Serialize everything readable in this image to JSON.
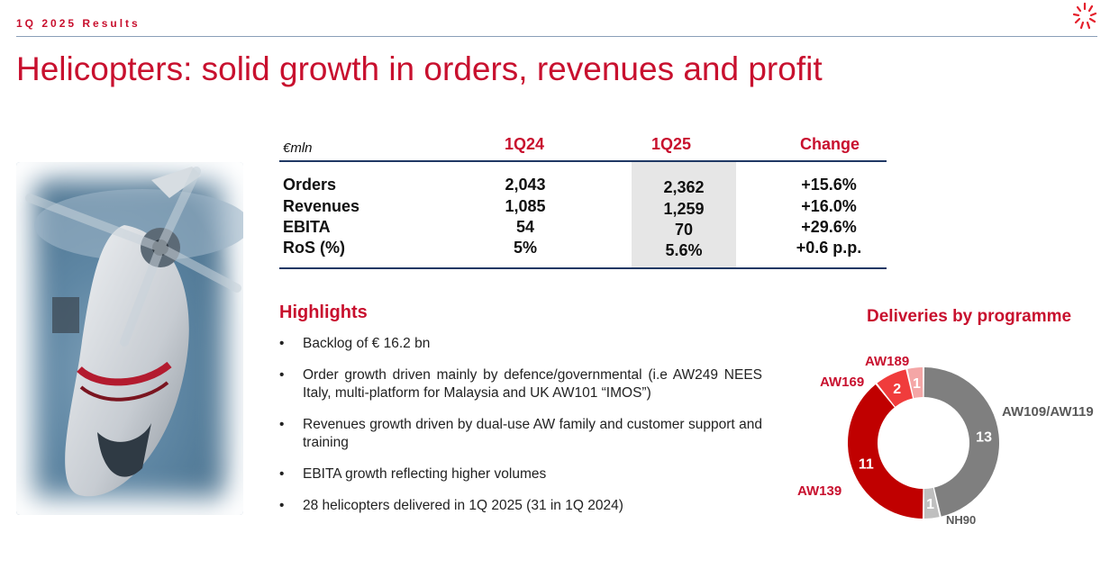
{
  "header": {
    "label": "1Q 2025 Results"
  },
  "title": "Helicopters: solid growth in orders, revenues and profit",
  "table": {
    "unit": "€mln",
    "columns": [
      "1Q24",
      "1Q25",
      "Change"
    ],
    "rows": [
      {
        "label": "Orders",
        "q24": "2,043",
        "q25": "2,362",
        "change": "+15.6%"
      },
      {
        "label": "Revenues",
        "q24": "1,085",
        "q25": "1,259",
        "change": "+16.0%"
      },
      {
        "label": "EBITA",
        "q24": "54",
        "q25": "70",
        "change": "+29.6%"
      },
      {
        "label": "RoS (%)",
        "q24": "5%",
        "q25": "5.6%",
        "change": "+0.6 p.p."
      }
    ]
  },
  "highlights": {
    "title": "Highlights",
    "items": [
      "Backlog of € 16.2 bn",
      "Order growth driven mainly by defence/governmental (i.e AW249 NEES Italy, multi-platform for Malaysia and UK AW101 “IMOS”)",
      "Revenues growth driven by dual-use AW family and customer support and training",
      "EBITA growth reflecting higher volumes",
      "28 helicopters delivered in 1Q 2025 (31 in 1Q 2024)"
    ]
  },
  "chart_data": {
    "type": "pie",
    "title": "Deliveries by programme",
    "slices": [
      {
        "label": "AW109/AW119",
        "value": 13,
        "color": "#7f7f7f"
      },
      {
        "label": "NH90",
        "value": 1,
        "color": "#bfbfbf"
      },
      {
        "label": "AW139",
        "value": 11,
        "color": "#c00000"
      },
      {
        "label": "AW169",
        "value": 2,
        "color": "#f03c3c"
      },
      {
        "label": "AW189",
        "value": 1,
        "color": "#f4a6a6"
      }
    ],
    "label_colors": {
      "AW109/AW119": "#595959",
      "NH90": "#595959",
      "AW139": "#c8102e",
      "AW169": "#c8102e",
      "AW189": "#c8102e"
    }
  },
  "colors": {
    "accent": "#c8102e",
    "rule": "#1f3864"
  }
}
